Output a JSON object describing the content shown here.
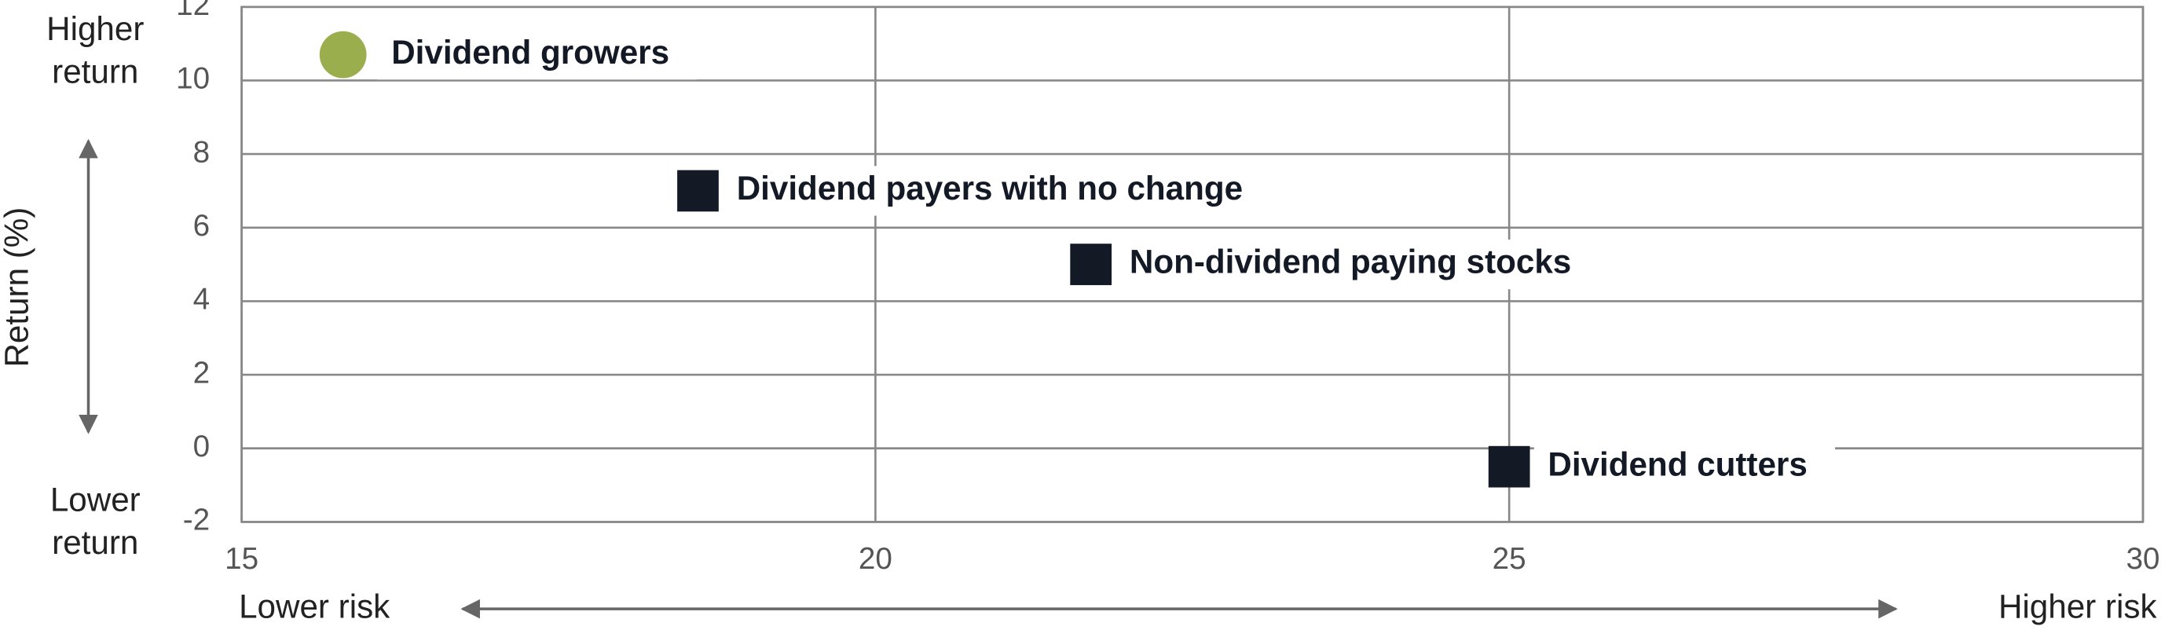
{
  "chart_data": {
    "type": "scatter",
    "y_label": "Return (%)",
    "y_top_note": "Higher return",
    "y_bottom_note": "Lower return",
    "x_left_note": "Lower risk",
    "x_right_note": "Higher risk",
    "xlim": [
      15,
      30
    ],
    "xticks": [
      15,
      20,
      25,
      30
    ],
    "ylim": [
      -2,
      12
    ],
    "yticks": [
      -2,
      0,
      2,
      4,
      6,
      8,
      10,
      12
    ],
    "grid": true,
    "series": [
      {
        "name": "Dividend growers",
        "color": "#9aae4e",
        "marker": "circle",
        "x": [
          15.8
        ],
        "values": [
          10.7
        ]
      },
      {
        "name": "Dividend payers with no change",
        "color": "#131a26",
        "marker": "square",
        "x": [
          18.6
        ],
        "values": [
          7.0
        ]
      },
      {
        "name": "Non-dividend paying stocks",
        "color": "#131a26",
        "marker": "square",
        "x": [
          21.7
        ],
        "values": [
          5.0
        ]
      },
      {
        "name": "Dividend cutters",
        "color": "#131a26",
        "marker": "square",
        "x": [
          25.0
        ],
        "values": [
          -0.5
        ]
      }
    ]
  }
}
